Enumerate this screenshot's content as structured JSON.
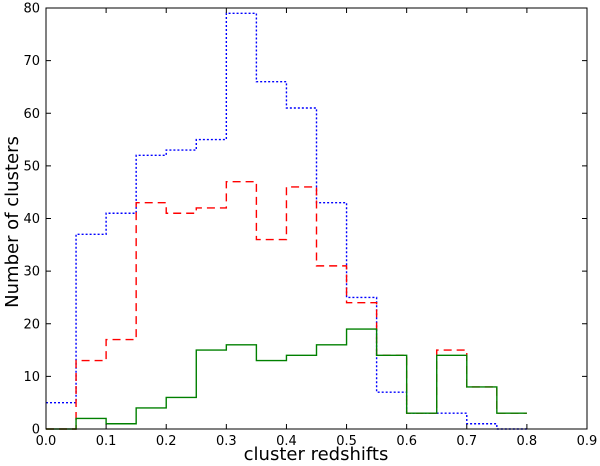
{
  "chart_data": {
    "type": "histogram",
    "title": "",
    "xlabel": "cluster redshifts",
    "ylabel": "Number of clusters",
    "xlim": [
      0.0,
      0.9
    ],
    "ylim": [
      0,
      80
    ],
    "grid": false,
    "legend": "none",
    "bin_edges": [
      0.0,
      0.05,
      0.1,
      0.15,
      0.2,
      0.25,
      0.3,
      0.35,
      0.4,
      0.45,
      0.5,
      0.55,
      0.6,
      0.65,
      0.7,
      0.75,
      0.8
    ],
    "xticks": [
      "0.0",
      "0.1",
      "0.2",
      "0.3",
      "0.4",
      "0.5",
      "0.6",
      "0.7",
      "0.8",
      "0.9"
    ],
    "yticks": [
      "0",
      "10",
      "20",
      "30",
      "40",
      "50",
      "60",
      "70",
      "80"
    ],
    "series": [
      {
        "color": "#0000ff",
        "linestyle": "dotted",
        "counts": [
          5,
          37,
          41,
          52,
          53,
          55,
          79,
          66,
          61,
          43,
          25,
          7,
          3,
          3,
          1,
          0
        ]
      },
      {
        "color": "#ff0000",
        "linestyle": "dashed",
        "counts": [
          0,
          13,
          17,
          43,
          41,
          42,
          47,
          36,
          46,
          31,
          24,
          14,
          3,
          15,
          8,
          3
        ]
      },
      {
        "color": "#008000",
        "linestyle": "solid",
        "counts": [
          0,
          2,
          1,
          4,
          6,
          15,
          16,
          13,
          14,
          16,
          19,
          14,
          3,
          14,
          8,
          3
        ]
      }
    ]
  }
}
